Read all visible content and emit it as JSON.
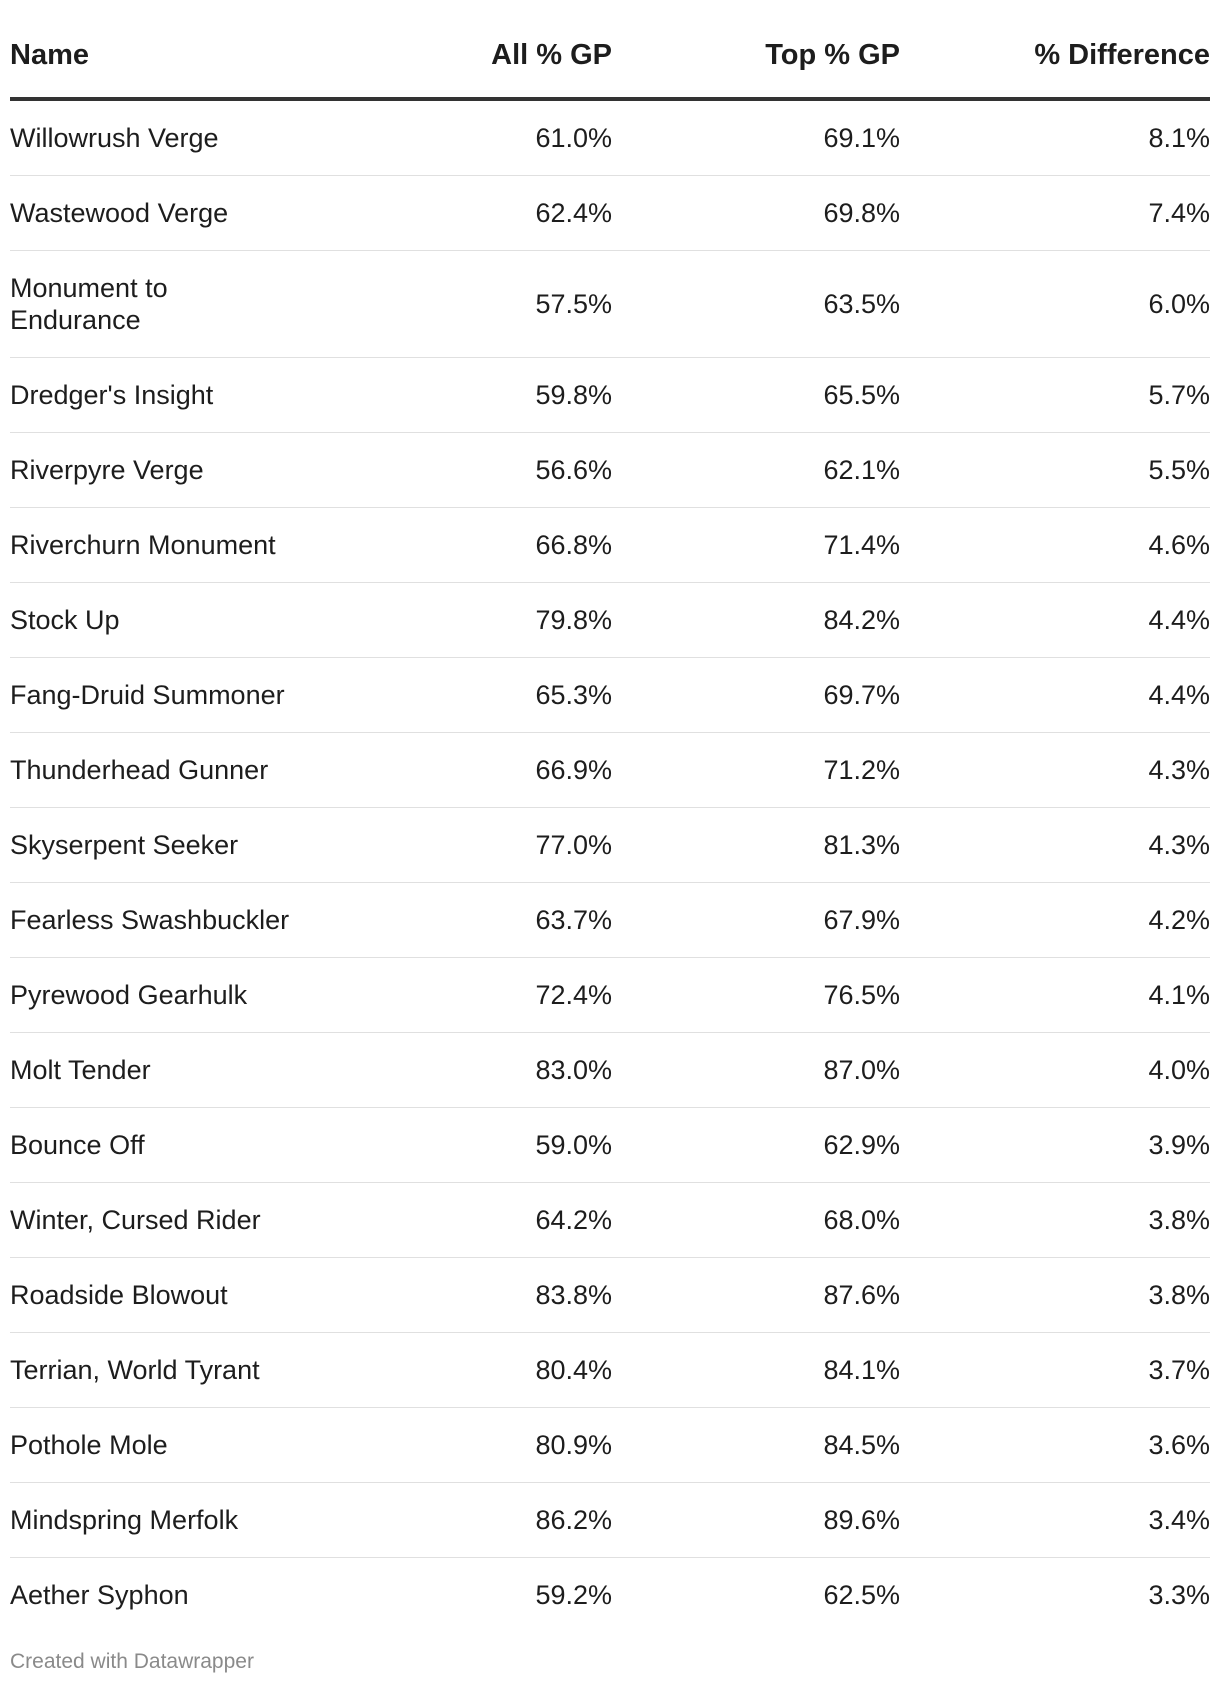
{
  "chart_data": {
    "type": "table",
    "columns": [
      "Name",
      "All % GP",
      "Top % GP",
      "% Difference"
    ],
    "rows": [
      [
        "Willowrush Verge",
        "61.0%",
        "69.1%",
        "8.1%"
      ],
      [
        "Wastewood Verge",
        "62.4%",
        "69.8%",
        "7.4%"
      ],
      [
        "Monument to Endurance",
        "57.5%",
        "63.5%",
        "6.0%"
      ],
      [
        "Dredger's Insight",
        "59.8%",
        "65.5%",
        "5.7%"
      ],
      [
        "Riverpyre Verge",
        "56.6%",
        "62.1%",
        "5.5%"
      ],
      [
        "Riverchurn Monument",
        "66.8%",
        "71.4%",
        "4.6%"
      ],
      [
        "Stock Up",
        "79.8%",
        "84.2%",
        "4.4%"
      ],
      [
        "Fang-Druid Summoner",
        "65.3%",
        "69.7%",
        "4.4%"
      ],
      [
        "Thunderhead Gunner",
        "66.9%",
        "71.2%",
        "4.3%"
      ],
      [
        "Skyserpent Seeker",
        "77.0%",
        "81.3%",
        "4.3%"
      ],
      [
        "Fearless Swashbuckler",
        "63.7%",
        "67.9%",
        "4.2%"
      ],
      [
        "Pyrewood Gearhulk",
        "72.4%",
        "76.5%",
        "4.1%"
      ],
      [
        "Molt Tender",
        "83.0%",
        "87.0%",
        "4.0%"
      ],
      [
        "Bounce Off",
        "59.0%",
        "62.9%",
        "3.9%"
      ],
      [
        "Winter, Cursed Rider",
        "64.2%",
        "68.0%",
        "3.8%"
      ],
      [
        "Roadside Blowout",
        "83.8%",
        "87.6%",
        "3.8%"
      ],
      [
        "Terrian, World Tyrant",
        "80.4%",
        "84.1%",
        "3.7%"
      ],
      [
        "Pothole Mole",
        "80.9%",
        "84.5%",
        "3.6%"
      ],
      [
        "Mindspring Merfolk",
        "86.2%",
        "89.6%",
        "3.4%"
      ],
      [
        "Aether Syphon",
        "59.2%",
        "62.5%",
        "3.3%"
      ]
    ]
  },
  "footer": {
    "credit": "Created with Datawrapper"
  },
  "colors": {
    "text": "#1d1d1d",
    "header_rule": "#333333",
    "row_rule": "#e0e0e0",
    "footer_text": "#8a8a8a"
  }
}
